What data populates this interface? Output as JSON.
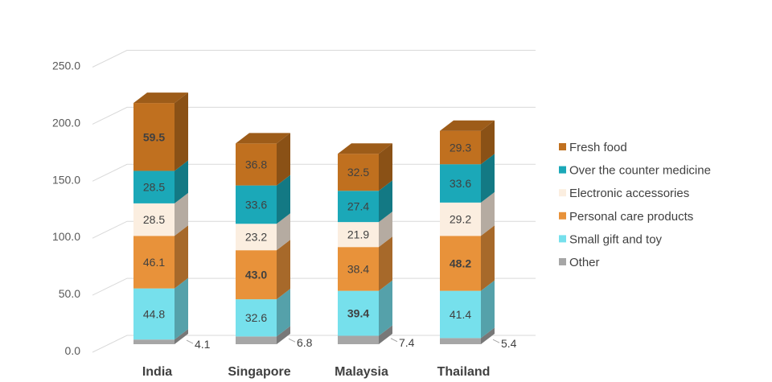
{
  "chart_data": {
    "type": "bar",
    "stacked": true,
    "three_d": true,
    "categories": [
      "India",
      "Singapore",
      "Malaysia",
      "Thailand"
    ],
    "series": [
      {
        "name": "Other",
        "color": "#a6a6a6",
        "values": [
          4.1,
          6.8,
          7.4,
          5.4
        ]
      },
      {
        "name": "Small gift and toy",
        "color": "#76e0ec",
        "values": [
          44.8,
          32.6,
          39.4,
          41.4
        ]
      },
      {
        "name": "Personal care products",
        "color": "#e8923a",
        "values": [
          46.1,
          43.0,
          38.4,
          48.2
        ]
      },
      {
        "name": "Electronic accessories",
        "color": "#fbeee0",
        "values": [
          28.5,
          23.2,
          21.9,
          29.2
        ]
      },
      {
        "name": "Over the counter medicine",
        "color": "#1ba8b8",
        "values": [
          28.5,
          33.6,
          27.4,
          33.6
        ]
      },
      {
        "name": "Fresh food",
        "color": "#c0701f",
        "values": [
          59.5,
          36.8,
          32.5,
          29.3
        ]
      }
    ],
    "data_labels": [
      [
        "4.1",
        "6.8",
        "7.4",
        "5.4"
      ],
      [
        "44.8",
        "32.6",
        "39.4",
        "41.4"
      ],
      [
        "46.1",
        "43.0",
        "38.4",
        "48.2"
      ],
      [
        "28.5",
        "23.2",
        "21.9",
        "29.2"
      ],
      [
        "28.5",
        "33.6",
        "27.4",
        "33.6"
      ],
      [
        "59.5",
        "36.8",
        "32.5",
        "29.3"
      ]
    ],
    "bold_labels": [
      [
        false,
        false,
        false,
        false
      ],
      [
        false,
        false,
        true,
        false
      ],
      [
        false,
        true,
        false,
        true
      ],
      [
        false,
        false,
        false,
        false
      ],
      [
        false,
        false,
        false,
        false
      ],
      [
        true,
        false,
        false,
        false
      ]
    ],
    "y_ticks": [
      "0.0",
      "50.0",
      "100.0",
      "150.0",
      "200.0",
      "250.0"
    ],
    "ylim": [
      0,
      250
    ],
    "grid": true,
    "legend_position": "right",
    "legend_order": [
      "Fresh food",
      "Over the counter medicine",
      "Electronic accessories",
      "Personal care products",
      "Small gift and toy",
      "Other"
    ],
    "title": "",
    "xlabel": "",
    "ylabel": ""
  }
}
